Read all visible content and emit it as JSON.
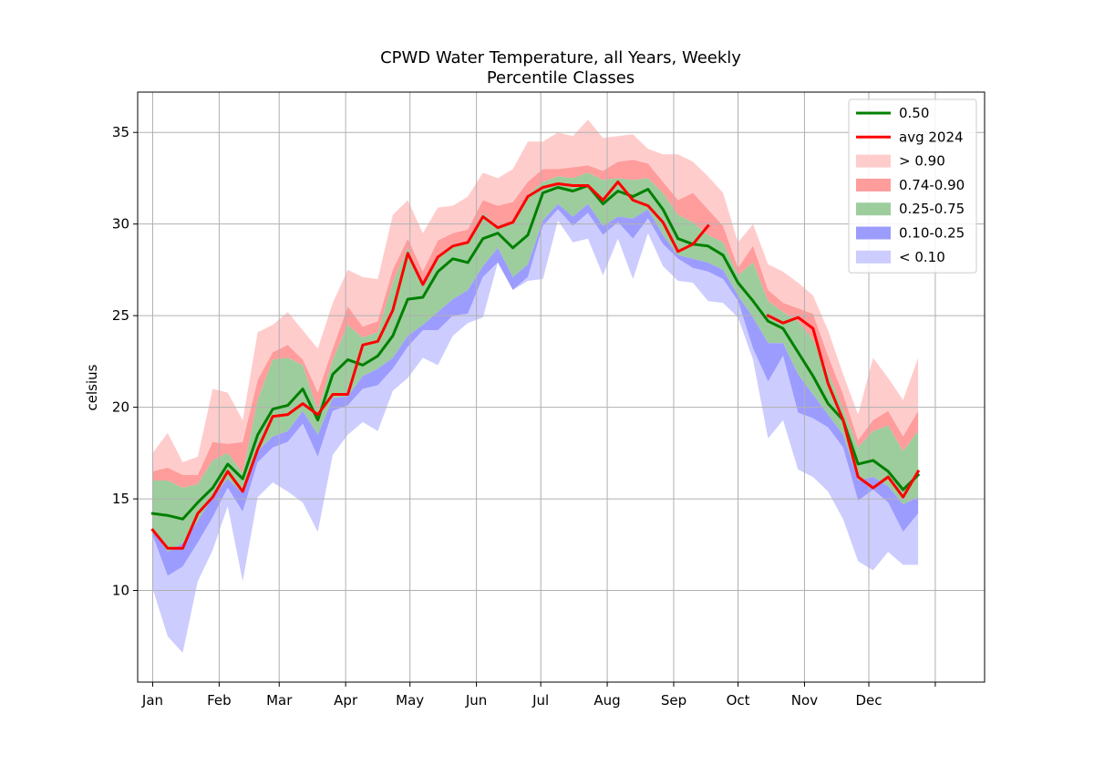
{
  "chart_data": {
    "type": "area",
    "title": "CPWD Water Temperature, all Years, Weekly",
    "subtitle": "Percentile Classes",
    "xlabel": "",
    "ylabel": "celsius",
    "ylim": [
      5.0,
      37.2
    ],
    "yticks": [
      10,
      15,
      20,
      25,
      30,
      35
    ],
    "xlim_days": [
      -6,
      389
    ],
    "xticks": [
      {
        "label": "Jan",
        "day": 1
      },
      {
        "label": "Feb",
        "day": 32
      },
      {
        "label": "Mar",
        "day": 60
      },
      {
        "label": "Apr",
        "day": 91
      },
      {
        "label": "May",
        "day": 121
      },
      {
        "label": "Jun",
        "day": 152
      },
      {
        "label": "Jul",
        "day": 182
      },
      {
        "label": "Aug",
        "day": 213
      },
      {
        "label": "Sep",
        "day": 244
      },
      {
        "label": "Oct",
        "day": 274
      },
      {
        "label": "Nov",
        "day": 305
      },
      {
        "label": "Dec",
        "day": 335
      },
      {
        "label": "",
        "day": 366
      }
    ],
    "grid": true,
    "legend": "top-right",
    "colors": {
      "p50": "#008000",
      "avg2024": "#ff0000",
      "gt90": "#ffcccc",
      "p74_90": "#ff9c9c",
      "p25_75": "#9dcd9d",
      "p10_25": "#9c9cff",
      "lt10": "#ccccff"
    },
    "legend_entries": [
      {
        "key": "p50",
        "label": "0.50",
        "kind": "line"
      },
      {
        "key": "avg2024",
        "label": "avg 2024",
        "kind": "line"
      },
      {
        "key": "gt90",
        "label": "> 0.90",
        "kind": "patch"
      },
      {
        "key": "p74_90",
        "label": "0.74-0.90",
        "kind": "patch"
      },
      {
        "key": "p25_75",
        "label": "0.25-0.75",
        "kind": "patch"
      },
      {
        "key": "p10_25",
        "label": "0.10-0.25",
        "kind": "patch"
      },
      {
        "key": "lt10",
        "label": "< 0.10",
        "kind": "patch"
      }
    ],
    "x_weeks": {
      "start_day": 1,
      "step_days": 7
    },
    "series": {
      "max": [
        17.5,
        18.6,
        17.0,
        17.3,
        21.0,
        20.8,
        19.3,
        24.1,
        24.5,
        25.2,
        24.2,
        23.2,
        25.7,
        27.5,
        27.1,
        27.0,
        30.5,
        31.3,
        29.5,
        30.9,
        31.0,
        31.5,
        32.8,
        32.5,
        33.0,
        34.5,
        34.5,
        35.0,
        34.8,
        35.7,
        34.7,
        34.8,
        34.9,
        34.1,
        33.8,
        33.8,
        33.4,
        32.6,
        31.7,
        29.0,
        30.0,
        27.8,
        27.4,
        26.8,
        26.1,
        24.2,
        21.8,
        19.6,
        22.7,
        21.6,
        20.4,
        22.7
      ],
      "p90": [
        16.5,
        16.7,
        16.3,
        16.3,
        18.1,
        18.0,
        18.1,
        21.5,
        23.0,
        23.4,
        22.6,
        20.8,
        23.2,
        25.5,
        24.4,
        24.7,
        27.5,
        29.2,
        27.4,
        29.1,
        29.5,
        29.7,
        31.3,
        31.0,
        31.2,
        32.3,
        33.0,
        33.0,
        33.1,
        33.2,
        32.9,
        33.4,
        33.5,
        33.3,
        32.3,
        31.3,
        31.7,
        30.8,
        29.9,
        27.6,
        28.8,
        26.4,
        25.7,
        25.4,
        25.1,
        22.8,
        20.7,
        18.2,
        19.3,
        19.8,
        18.4,
        19.8
      ],
      "p75": [
        16.0,
        16.0,
        15.6,
        15.8,
        17.1,
        17.5,
        16.4,
        20.4,
        22.6,
        22.7,
        22.3,
        19.8,
        22.6,
        24.5,
        23.8,
        24.1,
        26.8,
        28.7,
        26.8,
        28.3,
        28.9,
        29.0,
        30.6,
        29.9,
        30.0,
        31.6,
        32.3,
        32.6,
        32.5,
        32.8,
        32.4,
        32.5,
        32.4,
        32.5,
        31.7,
        30.5,
        30.1,
        29.4,
        29.0,
        27.2,
        27.9,
        25.8,
        25.2,
        24.7,
        23.7,
        21.9,
        19.9,
        17.8,
        18.7,
        19.0,
        17.6,
        18.7
      ],
      "p50": [
        14.2,
        14.1,
        13.9,
        14.8,
        15.6,
        16.9,
        16.1,
        18.5,
        19.9,
        20.1,
        21.0,
        19.3,
        21.8,
        22.6,
        22.3,
        22.8,
        23.9,
        25.9,
        26.0,
        27.4,
        28.1,
        27.9,
        29.2,
        29.5,
        28.7,
        29.4,
        31.7,
        32.0,
        31.8,
        32.1,
        31.1,
        31.8,
        31.5,
        31.9,
        30.8,
        29.2,
        28.9,
        28.8,
        28.3,
        26.8,
        25.8,
        24.7,
        24.3,
        23.0,
        21.7,
        20.2,
        19.3,
        16.9,
        17.1,
        16.5,
        15.5,
        16.3
      ],
      "p25": [
        13.3,
        12.1,
        12.6,
        13.8,
        15.1,
        16.1,
        15.3,
        17.6,
        18.4,
        18.7,
        19.8,
        18.5,
        20.5,
        20.6,
        21.7,
        22.1,
        22.7,
        23.9,
        24.5,
        25.2,
        25.9,
        26.4,
        27.7,
        28.7,
        27.1,
        27.8,
        30.2,
        31.1,
        30.4,
        31.1,
        29.9,
        30.4,
        30.3,
        30.8,
        29.4,
        28.3,
        28.1,
        27.9,
        27.5,
        26.1,
        24.9,
        23.5,
        23.5,
        21.8,
        20.7,
        19.6,
        18.5,
        16.0,
        16.2,
        15.7,
        14.7,
        15.1
      ],
      "p10": [
        13.0,
        10.8,
        11.3,
        12.6,
        14.0,
        15.6,
        14.3,
        17.0,
        17.8,
        18.1,
        19.1,
        17.3,
        19.8,
        20.1,
        21.0,
        21.2,
        22.1,
        23.3,
        24.2,
        24.2,
        25.0,
        25.1,
        27.1,
        27.9,
        26.4,
        27.1,
        29.9,
        30.8,
        29.9,
        30.6,
        29.4,
        30.1,
        29.2,
        30.3,
        28.9,
        28.1,
        27.6,
        27.4,
        27.0,
        25.8,
        23.2,
        21.4,
        22.8,
        19.7,
        19.4,
        18.9,
        17.8,
        14.9,
        15.5,
        14.8,
        13.2,
        14.2
      ],
      "min": [
        10.1,
        7.5,
        6.6,
        10.5,
        12.2,
        14.6,
        10.5,
        15.1,
        15.9,
        15.4,
        14.8,
        13.2,
        17.4,
        18.5,
        19.2,
        18.7,
        20.9,
        21.6,
        22.7,
        22.3,
        23.9,
        24.6,
        24.9,
        27.9,
        26.4,
        26.9,
        27.0,
        30.2,
        29.0,
        29.2,
        27.2,
        29.2,
        27.0,
        29.5,
        27.7,
        26.9,
        26.8,
        25.8,
        25.7,
        24.9,
        22.6,
        18.3,
        19.3,
        16.6,
        16.2,
        15.4,
        13.9,
        11.6,
        11.1,
        12.1,
        11.4,
        11.4
      ],
      "avg2024": [
        13.3,
        12.3,
        12.3,
        14.2,
        15.1,
        16.5,
        15.4,
        17.7,
        19.5,
        19.6,
        20.2,
        19.6,
        20.7,
        20.7,
        23.4,
        23.6,
        25.3,
        28.4,
        26.7,
        28.2,
        28.8,
        29.0,
        30.4,
        29.8,
        30.1,
        31.5,
        32.0,
        32.2,
        32.1,
        32.1,
        31.3,
        32.3,
        31.3,
        31.0,
        30.1,
        28.5,
        28.9,
        29.9,
        null,
        null,
        null,
        25.0,
        24.6,
        24.9,
        24.3,
        21.3,
        19.3,
        16.2,
        15.6,
        16.2,
        15.1,
        16.5
      ]
    }
  }
}
